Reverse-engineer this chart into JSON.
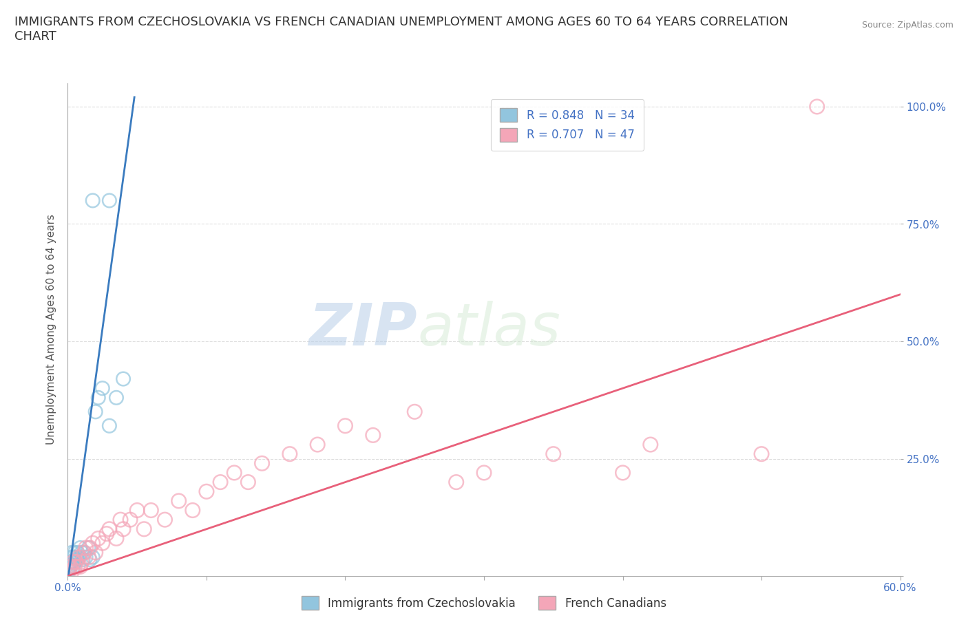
{
  "title": "IMMIGRANTS FROM CZECHOSLOVAKIA VS FRENCH CANADIAN UNEMPLOYMENT AMONG AGES 60 TO 64 YEARS CORRELATION\nCHART",
  "source": "Source: ZipAtlas.com",
  "ylabel": "Unemployment Among Ages 60 to 64 years",
  "xlim": [
    0,
    0.6
  ],
  "ylim": [
    0,
    1.05
  ],
  "legend1_label": "R = 0.848   N = 34",
  "legend2_label": "R = 0.707   N = 47",
  "legend_bottom1": "Immigrants from Czechoslovakia",
  "legend_bottom2": "French Canadians",
  "watermark_zip": "ZIP",
  "watermark_atlas": "atlas",
  "blue_color": "#92c5de",
  "pink_color": "#f4a6b8",
  "blue_line_color": "#3a7bbf",
  "pink_line_color": "#e8607a",
  "blue_scatter": [
    [
      0.0005,
      0.01
    ],
    [
      0.001,
      0.02
    ],
    [
      0.001,
      0.015
    ],
    [
      0.0015,
      0.025
    ],
    [
      0.002,
      0.03
    ],
    [
      0.002,
      0.02
    ],
    [
      0.0025,
      0.04
    ],
    [
      0.003,
      0.03
    ],
    [
      0.003,
      0.05
    ],
    [
      0.0035,
      0.03
    ],
    [
      0.004,
      0.04
    ],
    [
      0.004,
      0.02
    ],
    [
      0.005,
      0.05
    ],
    [
      0.005,
      0.03
    ],
    [
      0.006,
      0.04
    ],
    [
      0.007,
      0.035
    ],
    [
      0.007,
      0.05
    ],
    [
      0.008,
      0.04
    ],
    [
      0.009,
      0.06
    ],
    [
      0.01,
      0.05
    ],
    [
      0.011,
      0.035
    ],
    [
      0.012,
      0.05
    ],
    [
      0.013,
      0.04
    ],
    [
      0.015,
      0.06
    ],
    [
      0.016,
      0.035
    ],
    [
      0.018,
      0.04
    ],
    [
      0.02,
      0.35
    ],
    [
      0.022,
      0.38
    ],
    [
      0.025,
      0.4
    ],
    [
      0.03,
      0.32
    ],
    [
      0.035,
      0.38
    ],
    [
      0.04,
      0.42
    ],
    [
      0.018,
      0.8
    ],
    [
      0.03,
      0.8
    ]
  ],
  "pink_scatter": [
    [
      0.001,
      0.01
    ],
    [
      0.002,
      0.02
    ],
    [
      0.003,
      0.01
    ],
    [
      0.004,
      0.03
    ],
    [
      0.005,
      0.02
    ],
    [
      0.006,
      0.03
    ],
    [
      0.007,
      0.02
    ],
    [
      0.008,
      0.04
    ],
    [
      0.009,
      0.02
    ],
    [
      0.01,
      0.03
    ],
    [
      0.012,
      0.05
    ],
    [
      0.013,
      0.06
    ],
    [
      0.015,
      0.04
    ],
    [
      0.016,
      0.06
    ],
    [
      0.018,
      0.07
    ],
    [
      0.02,
      0.05
    ],
    [
      0.022,
      0.08
    ],
    [
      0.025,
      0.07
    ],
    [
      0.028,
      0.09
    ],
    [
      0.03,
      0.1
    ],
    [
      0.035,
      0.08
    ],
    [
      0.038,
      0.12
    ],
    [
      0.04,
      0.1
    ],
    [
      0.045,
      0.12
    ],
    [
      0.05,
      0.14
    ],
    [
      0.055,
      0.1
    ],
    [
      0.06,
      0.14
    ],
    [
      0.07,
      0.12
    ],
    [
      0.08,
      0.16
    ],
    [
      0.09,
      0.14
    ],
    [
      0.1,
      0.18
    ],
    [
      0.11,
      0.2
    ],
    [
      0.12,
      0.22
    ],
    [
      0.13,
      0.2
    ],
    [
      0.14,
      0.24
    ],
    [
      0.16,
      0.26
    ],
    [
      0.18,
      0.28
    ],
    [
      0.2,
      0.32
    ],
    [
      0.22,
      0.3
    ],
    [
      0.25,
      0.35
    ],
    [
      0.28,
      0.2
    ],
    [
      0.3,
      0.22
    ],
    [
      0.35,
      0.26
    ],
    [
      0.4,
      0.22
    ],
    [
      0.42,
      0.28
    ],
    [
      0.5,
      0.26
    ],
    [
      0.54,
      1.0
    ]
  ],
  "blue_trend_x": [
    0.0,
    0.048
  ],
  "blue_trend_y": [
    -0.01,
    1.02
  ],
  "pink_trend_x": [
    0.0,
    0.6
  ],
  "pink_trend_y": [
    0.0,
    0.6
  ],
  "grid_color": "#dddddd",
  "background_color": "#ffffff",
  "title_fontsize": 13,
  "axis_label_fontsize": 11,
  "tick_fontsize": 11,
  "legend_fontsize": 12
}
